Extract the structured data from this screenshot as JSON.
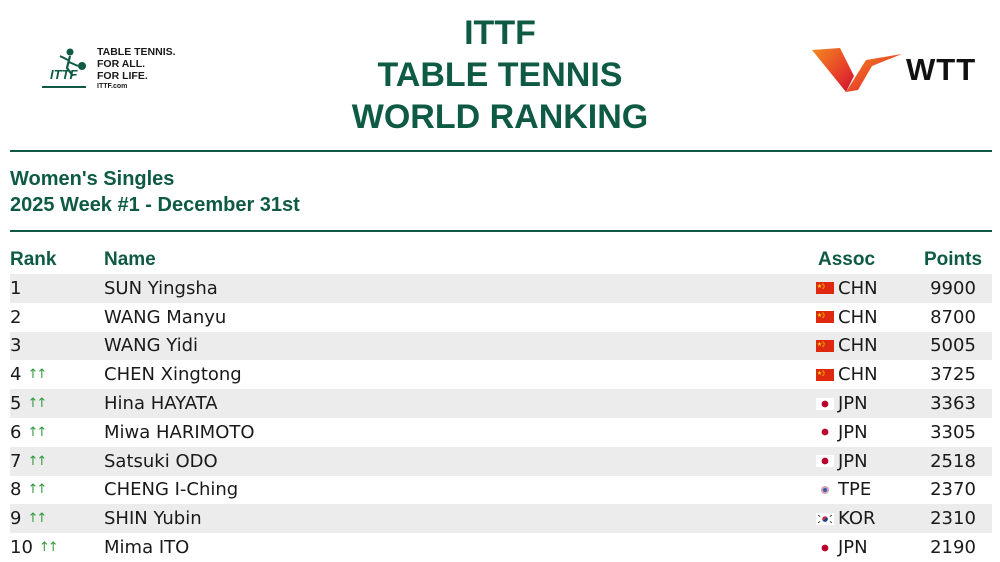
{
  "header": {
    "ittf_logo": {
      "mark_text": "ITTF",
      "tagline": [
        "TABLE TENNIS.",
        "FOR ALL.",
        "FOR LIFE."
      ],
      "url": "ITTF.com"
    },
    "title_lines": [
      "ITTF",
      "TABLE TENNIS",
      "WORLD RANKING"
    ],
    "wtt_logo": {
      "text": "WTT"
    }
  },
  "subtitle": {
    "category": "Women's Singles",
    "week": "2025 Week #1 - December 31st"
  },
  "table": {
    "columns": {
      "rank": "Rank",
      "name": "Name",
      "assoc": "Assoc",
      "points": "Points"
    },
    "rows": [
      {
        "rank": "1",
        "trend": "",
        "name": "SUN Yingsha",
        "flag": "china-flag-icon",
        "assoc": "CHN",
        "points": "9900"
      },
      {
        "rank": "2",
        "trend": "",
        "name": "WANG Manyu",
        "flag": "china-flag-icon",
        "assoc": "CHN",
        "points": "8700"
      },
      {
        "rank": "3",
        "trend": "",
        "name": "WANG Yidi",
        "flag": "china-flag-icon",
        "assoc": "CHN",
        "points": "5005"
      },
      {
        "rank": "4",
        "trend": "↑↑",
        "name": "CHEN Xingtong",
        "flag": "china-flag-icon",
        "assoc": "CHN",
        "points": "3725"
      },
      {
        "rank": "5",
        "trend": "↑↑",
        "name": "Hina HAYATA",
        "flag": "japan-flag-icon",
        "assoc": "JPN",
        "points": "3363"
      },
      {
        "rank": "6",
        "trend": "↑↑",
        "name": "Miwa HARIMOTO",
        "flag": "japan-flag-icon",
        "assoc": "JPN",
        "points": "3305"
      },
      {
        "rank": "7",
        "trend": "↑↑",
        "name": "Satsuki ODO",
        "flag": "japan-flag-icon",
        "assoc": "JPN",
        "points": "2518"
      },
      {
        "rank": "8",
        "trend": "↑↑",
        "name": "CHENG I-Ching",
        "flag": "tpe-flag-icon",
        "assoc": "TPE",
        "points": "2370"
      },
      {
        "rank": "9",
        "trend": "↑↑",
        "name": "SHIN Yubin",
        "flag": "korea-flag-icon",
        "assoc": "KOR",
        "points": "2310"
      },
      {
        "rank": "10",
        "trend": "↑↑",
        "name": "Mima ITO",
        "flag": "japan-flag-icon",
        "assoc": "JPN",
        "points": "2190"
      }
    ]
  },
  "colors": {
    "brand_green": "#0e5a44",
    "trend_up": "#2e9a3a",
    "row_stripe": "#ececec"
  }
}
